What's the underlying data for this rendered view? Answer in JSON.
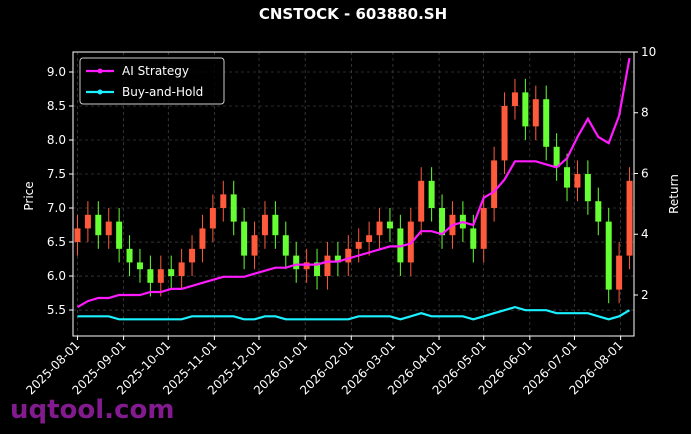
{
  "chart_data": {
    "type": "candlestick",
    "title": "CNSTOCK - 603880.SH",
    "ylabel": "Price",
    "y2label": "Return",
    "watermark": "uqtool.com",
    "x": [
      "2025-08-01",
      "2025-08-08",
      "2025-08-15",
      "2025-08-22",
      "2025-08-29",
      "2025-09-05",
      "2025-09-12",
      "2025-09-19",
      "2025-09-26",
      "2025-10-03",
      "2025-10-10",
      "2025-10-17",
      "2025-10-24",
      "2025-10-31",
      "2025-11-07",
      "2025-11-14",
      "2025-11-21",
      "2025-11-28",
      "2025-12-05",
      "2025-12-12",
      "2025-12-19",
      "2025-12-26",
      "2026-01-02",
      "2026-01-09",
      "2026-01-16",
      "2026-01-23",
      "2026-01-30",
      "2026-02-06",
      "2026-02-13",
      "2026-02-20",
      "2026-02-27",
      "2026-03-06",
      "2026-03-13",
      "2026-03-20",
      "2026-03-27",
      "2026-04-03",
      "2026-04-10",
      "2026-04-17",
      "2026-04-24",
      "2026-05-01",
      "2026-05-08",
      "2026-05-15",
      "2026-05-22",
      "2026-05-29",
      "2026-06-05",
      "2026-06-12",
      "2026-06-19",
      "2026-06-26",
      "2026-07-03",
      "2026-07-10",
      "2026-07-17",
      "2026-07-24",
      "2026-07-31",
      "2026-08-07"
    ],
    "open": [
      6.5,
      6.7,
      6.9,
      6.6,
      6.8,
      6.4,
      6.2,
      6.1,
      5.9,
      6.1,
      6.0,
      6.2,
      6.4,
      6.7,
      7.0,
      7.2,
      6.8,
      6.3,
      6.6,
      6.9,
      6.6,
      6.3,
      6.1,
      6.2,
      6.0,
      6.3,
      6.2,
      6.4,
      6.5,
      6.6,
      6.8,
      6.7,
      6.2,
      6.8,
      7.4,
      7.0,
      6.6,
      6.9,
      6.7,
      6.4,
      7.0,
      7.7,
      8.5,
      8.7,
      8.2,
      8.6,
      7.9,
      7.6,
      7.3,
      7.5,
      7.1,
      6.8,
      5.8,
      6.3
    ],
    "high": [
      6.9,
      7.1,
      7.1,
      7.0,
      7.0,
      6.6,
      6.4,
      6.3,
      6.3,
      6.3,
      6.4,
      6.6,
      6.9,
      7.2,
      7.4,
      7.4,
      7.0,
      6.8,
      7.1,
      7.1,
      6.8,
      6.5,
      6.4,
      6.4,
      6.5,
      6.5,
      6.6,
      6.7,
      6.8,
      7.0,
      7.0,
      6.9,
      7.0,
      7.6,
      7.6,
      7.2,
      7.1,
      7.1,
      6.9,
      7.2,
      7.9,
      8.7,
      8.9,
      8.9,
      8.8,
      8.8,
      8.1,
      7.8,
      7.7,
      7.7,
      7.3,
      7.0,
      6.5,
      7.6
    ],
    "low": [
      6.3,
      6.5,
      6.4,
      6.4,
      6.2,
      6.0,
      5.9,
      5.7,
      5.7,
      5.8,
      5.8,
      6.0,
      6.2,
      6.5,
      6.8,
      6.6,
      6.1,
      6.1,
      6.4,
      6.4,
      6.1,
      5.9,
      5.9,
      5.8,
      5.8,
      6.0,
      6.0,
      6.2,
      6.3,
      6.4,
      6.5,
      6.0,
      6.0,
      6.6,
      6.8,
      6.4,
      6.4,
      6.5,
      6.2,
      6.2,
      6.8,
      7.5,
      8.3,
      8.0,
      8.0,
      7.7,
      7.4,
      7.1,
      7.1,
      6.9,
      6.6,
      5.6,
      5.6,
      6.1
    ],
    "close": [
      6.7,
      6.9,
      6.6,
      6.8,
      6.4,
      6.2,
      6.1,
      5.9,
      6.1,
      6.0,
      6.2,
      6.4,
      6.7,
      7.0,
      7.2,
      6.8,
      6.3,
      6.6,
      6.9,
      6.6,
      6.3,
      6.1,
      6.2,
      6.0,
      6.3,
      6.2,
      6.4,
      6.5,
      6.6,
      6.8,
      6.7,
      6.2,
      6.8,
      7.4,
      7.0,
      6.6,
      6.9,
      6.7,
      6.4,
      7.0,
      7.7,
      8.5,
      8.7,
      8.2,
      8.6,
      7.9,
      7.6,
      7.3,
      7.5,
      7.1,
      6.8,
      5.8,
      6.3,
      7.4
    ],
    "up_color": "#ff5a3c",
    "down_color": "#66ff33",
    "series": [
      {
        "name": "AI Strategy",
        "color": "#ff1aff",
        "axis": "y2",
        "values": [
          1.6,
          1.8,
          1.9,
          1.9,
          2.0,
          2.0,
          2.0,
          2.1,
          2.1,
          2.2,
          2.2,
          2.3,
          2.4,
          2.5,
          2.6,
          2.6,
          2.6,
          2.7,
          2.8,
          2.9,
          2.9,
          3.0,
          3.0,
          3.0,
          3.1,
          3.1,
          3.2,
          3.3,
          3.4,
          3.5,
          3.6,
          3.6,
          3.7,
          4.1,
          4.1,
          4.0,
          4.3,
          4.4,
          4.3,
          5.2,
          5.4,
          5.8,
          6.4,
          6.4,
          6.4,
          6.3,
          6.2,
          6.5,
          7.2,
          7.8,
          7.2,
          7.0,
          7.9,
          9.8
        ]
      },
      {
        "name": "Buy-and-Hold",
        "color": "#1af0ff",
        "axis": "y2",
        "values": [
          1.3,
          1.3,
          1.3,
          1.3,
          1.2,
          1.2,
          1.2,
          1.2,
          1.2,
          1.2,
          1.2,
          1.3,
          1.3,
          1.3,
          1.3,
          1.3,
          1.2,
          1.2,
          1.3,
          1.3,
          1.2,
          1.2,
          1.2,
          1.2,
          1.2,
          1.2,
          1.2,
          1.3,
          1.3,
          1.3,
          1.3,
          1.2,
          1.3,
          1.4,
          1.3,
          1.3,
          1.3,
          1.3,
          1.2,
          1.3,
          1.4,
          1.5,
          1.6,
          1.5,
          1.5,
          1.5,
          1.4,
          1.4,
          1.4,
          1.4,
          1.3,
          1.2,
          1.3,
          1.5
        ]
      }
    ],
    "xlim": [
      "2025-07-29",
      "2026-08-10"
    ],
    "xticks": [
      "2025-08-01",
      "2025-09-01",
      "2025-10-01",
      "2025-11-01",
      "2025-12-01",
      "2026-01-01",
      "2026-02-01",
      "2026-03-01",
      "2026-04-01",
      "2026-05-01",
      "2026-06-01",
      "2026-07-01",
      "2026-08-01"
    ],
    "ylim": [
      5.118,
      9.294
    ],
    "yticks": [
      5.5,
      {
        "value": 6,
        "label": "6.0"
      },
      6.5,
      {
        "value": 7,
        "label": "7.0"
      },
      7.5,
      {
        "value": 8,
        "label": "8.0"
      },
      8.5,
      {
        "value": 9,
        "label": "9.0"
      }
    ],
    "y2lim": [
      0.65,
      10
    ],
    "y2ticks": [
      2,
      4,
      6,
      8,
      10
    ],
    "grid": true,
    "legend": "upper left"
  }
}
